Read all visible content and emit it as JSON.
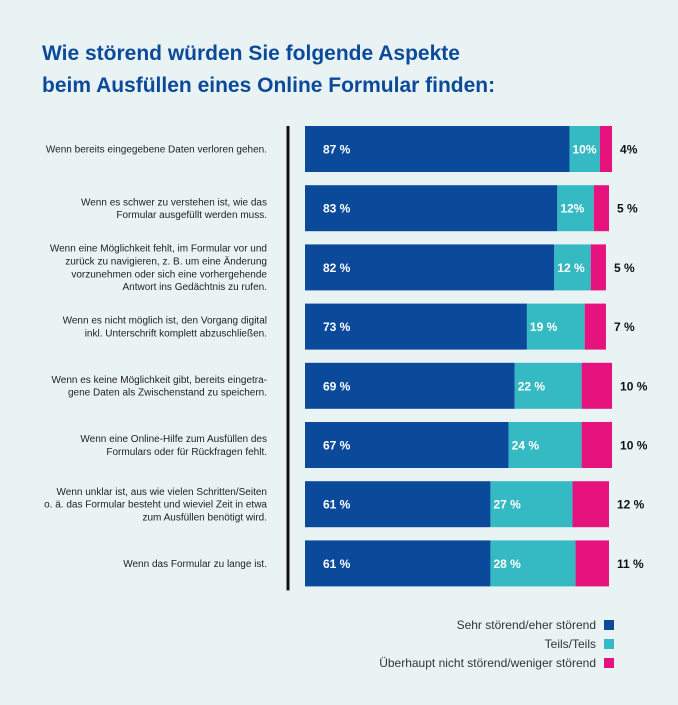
{
  "colors": {
    "background": "#eaf3f4",
    "title": "#0b4a9b",
    "sehr": "#0b4a9b",
    "teils": "#35b9c2",
    "ueberhaupt": "#e6127e"
  },
  "chart_data": {
    "type": "bar",
    "orientation": "horizontal",
    "stacked": true,
    "title": "Wie störend würden Sie folgende Aspekte beim Ausfüllen eines Online Formular finden:",
    "title_lines": [
      "Wie störend würden Sie folgende Aspekte",
      "beim Ausfüllen eines Online Formular finden:"
    ],
    "xlim": [
      0,
      100
    ],
    "categories": [
      [
        "Wenn bereits eingegebene Daten verloren gehen."
      ],
      [
        "Wenn es schwer zu verstehen ist, wie das",
        "Formular ausgefüllt werden muss."
      ],
      [
        "Wenn eine Möglichkeit fehlt, im Formular vor und",
        "zurück zu navigieren, z. B. um eine Änderung",
        "vorzunehmen oder sich eine vorhergehende",
        "Antwort ins Gedächtnis zu rufen."
      ],
      [
        "Wenn es nicht möglich ist, den Vorgang digital",
        "inkl. Unterschrift komplett abzuschließen."
      ],
      [
        "Wenn es keine Möglichkeit gibt, bereits eingetra-",
        "gene Daten als Zwischenstand zu speichern."
      ],
      [
        "Wenn eine Online-Hilfe zum Ausfüllen des",
        "Formulars oder für Rückfragen fehlt."
      ],
      [
        "Wenn unklar ist, aus wie vielen Schritten/Seiten",
        "o. ä. das Formular besteht und wieviel Zeit in etwa",
        "zum Ausfüllen benötigt wird."
      ],
      [
        "Wenn das Formular zu lange ist."
      ]
    ],
    "series": [
      {
        "name": "Sehr störend/eher störend",
        "color_key": "sehr",
        "values": [
          87,
          83,
          82,
          73,
          69,
          67,
          61,
          61
        ],
        "labels": [
          "87 %",
          "83 %",
          "82 %",
          "73 %",
          "69 %",
          "67 %",
          "61 %",
          "61 %"
        ]
      },
      {
        "name": "Teils/Teils",
        "color_key": "teils",
        "values": [
          10,
          12,
          12,
          19,
          22,
          24,
          27,
          28
        ],
        "labels": [
          "10%",
          "12%",
          "12 %",
          "19 %",
          "22 %",
          "24 %",
          "27 %",
          "28 %"
        ]
      },
      {
        "name": "Überhaupt nicht störend/weniger störend",
        "color_key": "ueberhaupt",
        "values": [
          4,
          5,
          5,
          7,
          10,
          10,
          12,
          11
        ],
        "labels": [
          "4%",
          "5 %",
          "5 %",
          "7 %",
          "10 %",
          "10 %",
          "12 %",
          "11 %"
        ]
      }
    ],
    "legend_position": "bottom-right"
  }
}
